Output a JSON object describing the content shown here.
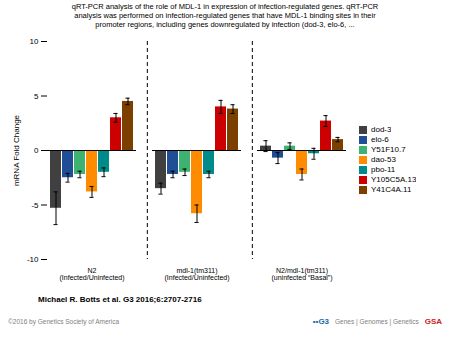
{
  "chart_data": {
    "type": "bar",
    "title": "qRT-PCR analysis of the role of MDL-1 in expression of infection-regulated genes. qRT-PCR\nanalysis was performed on infection-regulated genes that have MDL-1 binding sites in their\npromoter regions, including genes downregulated by infection (dod-3, elo-6, ...",
    "ylabel": "mRNA Fold Change",
    "categories": [
      "N2\n(Infected/Uninfected)",
      "mdl-1(tm311)\n(Infected/Uninfected)",
      "N2/mdl-1(tm311)\n(uninfected “Basal”)"
    ],
    "series": [
      {
        "name": "dod-3",
        "color": "#404040",
        "values": [
          -5.3,
          -3.5,
          0.4
        ],
        "errors": [
          1.5,
          0.5,
          0.5
        ]
      },
      {
        "name": "elo-6",
        "color": "#1f4e96",
        "values": [
          -2.5,
          -2.2,
          -0.7
        ],
        "errors": [
          0.4,
          0.3,
          0.5
        ]
      },
      {
        "name": "Y51F10.7",
        "color": "#3cb371",
        "values": [
          -2.2,
          -2.0,
          0.4
        ],
        "errors": [
          0.3,
          0.3,
          0.3
        ]
      },
      {
        "name": "dao-53",
        "color": "#ff8c00",
        "values": [
          -3.8,
          -5.8,
          -2.2
        ],
        "errors": [
          0.5,
          0.8,
          0.5
        ]
      },
      {
        "name": "pbo-11",
        "color": "#008b8b",
        "values": [
          -2.0,
          -2.2,
          -0.3
        ],
        "errors": [
          0.4,
          0.3,
          0.5
        ]
      },
      {
        "name": "Y105C5A.13",
        "color": "#cc0000",
        "values": [
          3.0,
          4.0,
          2.7
        ],
        "errors": [
          0.4,
          0.6,
          0.5
        ]
      },
      {
        "name": "Y41C4A.11",
        "color": "#7b3f00",
        "values": [
          4.5,
          3.8,
          1.0
        ],
        "errors": [
          0.3,
          0.4,
          0.2
        ]
      }
    ],
    "ylim": [
      -10,
      10
    ],
    "yticks": [
      -10,
      -5,
      0,
      5,
      10
    ],
    "legend": "right",
    "annotations": [
      "Michael R. Botts et al. G3 2016;6:2707-2716",
      "©2016 by Genetics Society of America",
      "••G3",
      "Genes | Genomes | Genetics",
      "GSA"
    ]
  }
}
